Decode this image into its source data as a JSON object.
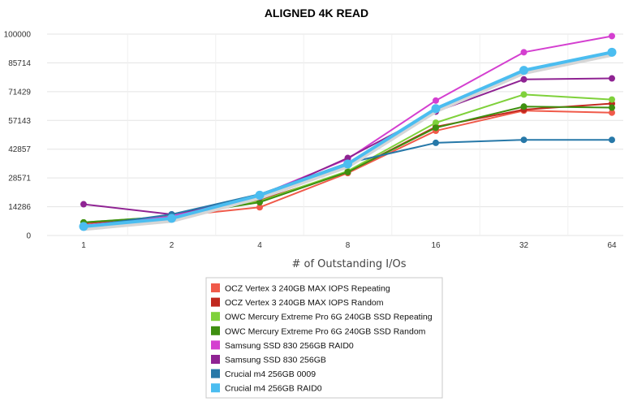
{
  "chart_data": {
    "type": "line",
    "title": "ALIGNED 4K READ",
    "xlabel": "# of Outstanding I/Os",
    "ylabel": "",
    "categories": [
      "1",
      "2",
      "4",
      "8",
      "16",
      "32",
      "64"
    ],
    "y_ticks": [
      "0",
      "14286",
      "28571",
      "42857",
      "57143",
      "71429",
      "85714",
      "100000"
    ],
    "ylim": [
      0,
      100000
    ],
    "grid": true,
    "legend_position": "bottom",
    "series": [
      {
        "name": "OCZ Vertex 3 240GB MAX IOPS Repeating",
        "color": "#f05a4a",
        "values": [
          6000,
          9500,
          14000,
          31000,
          52000,
          62000,
          61000
        ]
      },
      {
        "name": "OCZ Vertex 3 240GB MAX IOPS Random",
        "color": "#c0281e",
        "values": [
          6000,
          9500,
          17500,
          31500,
          54000,
          62500,
          65500
        ]
      },
      {
        "name": "OWC Mercury Extreme Pro 6G 240GB SSD Repeating",
        "color": "#7fd13b",
        "values": [
          6500,
          9500,
          17000,
          32000,
          56000,
          70000,
          67500
        ]
      },
      {
        "name": "OWC Mercury Extreme Pro 6G 240GB SSD Random",
        "color": "#3e8f10",
        "values": [
          6500,
          9500,
          16500,
          31500,
          53500,
          64000,
          63500
        ]
      },
      {
        "name": "Samsung SSD 830 256GB RAID0",
        "color": "#d43fd0",
        "values": [
          5000,
          9500,
          20000,
          38000,
          67000,
          91000,
          99000
        ]
      },
      {
        "name": "Samsung SSD 830 256GB",
        "color": "#8f2393",
        "values": [
          15500,
          10500,
          19000,
          38500,
          61500,
          77500,
          78000
        ]
      },
      {
        "name": "Crucial m4 256GB 0009",
        "color": "#2778a8",
        "values": [
          4500,
          10500,
          20500,
          36000,
          46000,
          47500,
          47500
        ]
      },
      {
        "name": "Crucial m4 256GB RAID0",
        "color": "#4bbdf0",
        "values": [
          4500,
          8500,
          20000,
          35500,
          63000,
          82000,
          91000
        ]
      }
    ]
  }
}
